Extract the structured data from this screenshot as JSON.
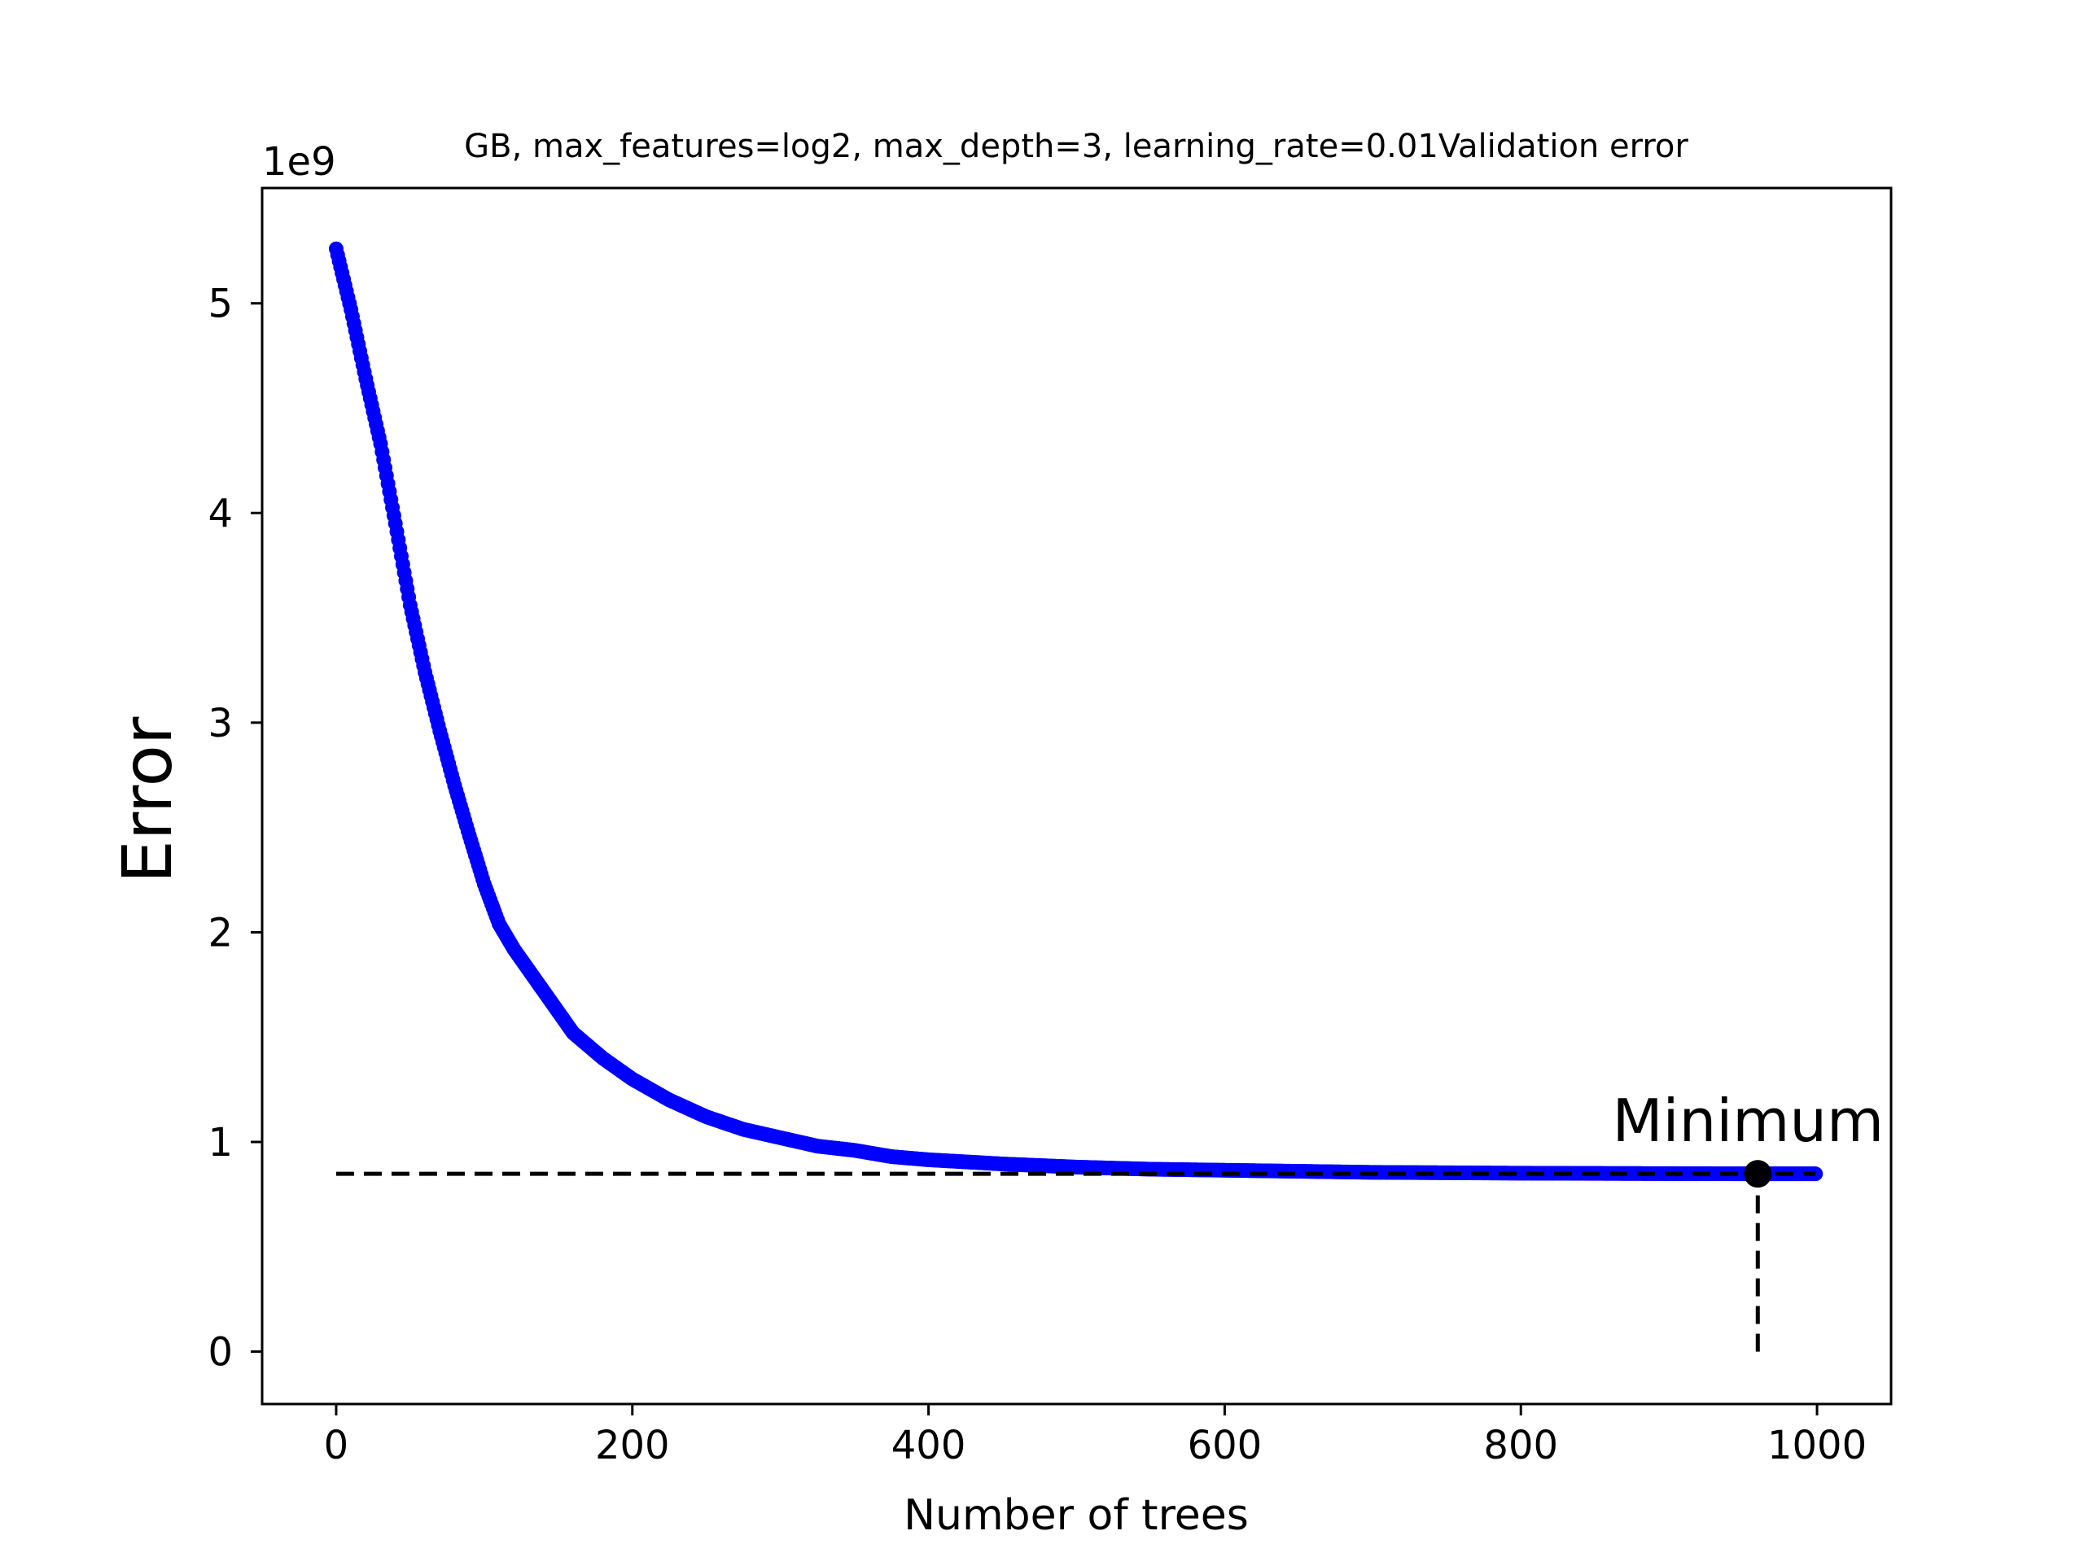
{
  "chart_data": {
    "type": "scatter",
    "title": "GB, max_features=log2, max_depth=3, learning_rate=0.01Validation error",
    "xlabel": "Number of trees",
    "ylabel": "Error",
    "y_scale_label": "1e9",
    "xlim": [
      -50,
      1050
    ],
    "ylim": [
      -0.25,
      5.55
    ],
    "x_ticks": [
      0,
      200,
      400,
      600,
      800,
      1000
    ],
    "x_tick_labels": [
      "0",
      "200",
      "400",
      "600",
      "800",
      "1000"
    ],
    "y_ticks": [
      0,
      1,
      2,
      3,
      4,
      5
    ],
    "y_tick_labels": [
      "0",
      "1",
      "2",
      "3",
      "4",
      "5"
    ],
    "grid": false,
    "series": [
      {
        "color": "#0000ff",
        "marker": "circle",
        "x_start": 0,
        "x_end": 999,
        "x": [
          0,
          10,
          20,
          30,
          40,
          50,
          60,
          70,
          80,
          90,
          100,
          110,
          120,
          140,
          160,
          180,
          200,
          225,
          250,
          275,
          300,
          325,
          350,
          375,
          400,
          450,
          500,
          550,
          600,
          650,
          700,
          750,
          800,
          850,
          900,
          950,
          999
        ],
        "values": [
          5.26,
          4.97,
          4.64,
          4.33,
          3.95,
          3.56,
          3.24,
          2.96,
          2.7,
          2.46,
          2.23,
          2.04,
          1.92,
          1.72,
          1.52,
          1.4,
          1.3,
          1.2,
          1.12,
          1.06,
          1.02,
          0.98,
          0.96,
          0.93,
          0.915,
          0.895,
          0.88,
          0.87,
          0.865,
          0.86,
          0.855,
          0.853,
          0.851,
          0.85,
          0.849,
          0.848,
          0.848
        ]
      }
    ],
    "annotations": [
      {
        "text": "Minimum",
        "x": 960,
        "y": 0.848,
        "color": "#000000"
      }
    ],
    "reference_lines": [
      {
        "orientation": "horizontal",
        "y": 0.848,
        "x_from": 0,
        "x_to": 999,
        "style": "dashed",
        "color": "#000000"
      },
      {
        "orientation": "vertical",
        "x": 960,
        "y_from": 0,
        "y_to": 0.848,
        "style": "dashed",
        "color": "#000000"
      }
    ]
  }
}
